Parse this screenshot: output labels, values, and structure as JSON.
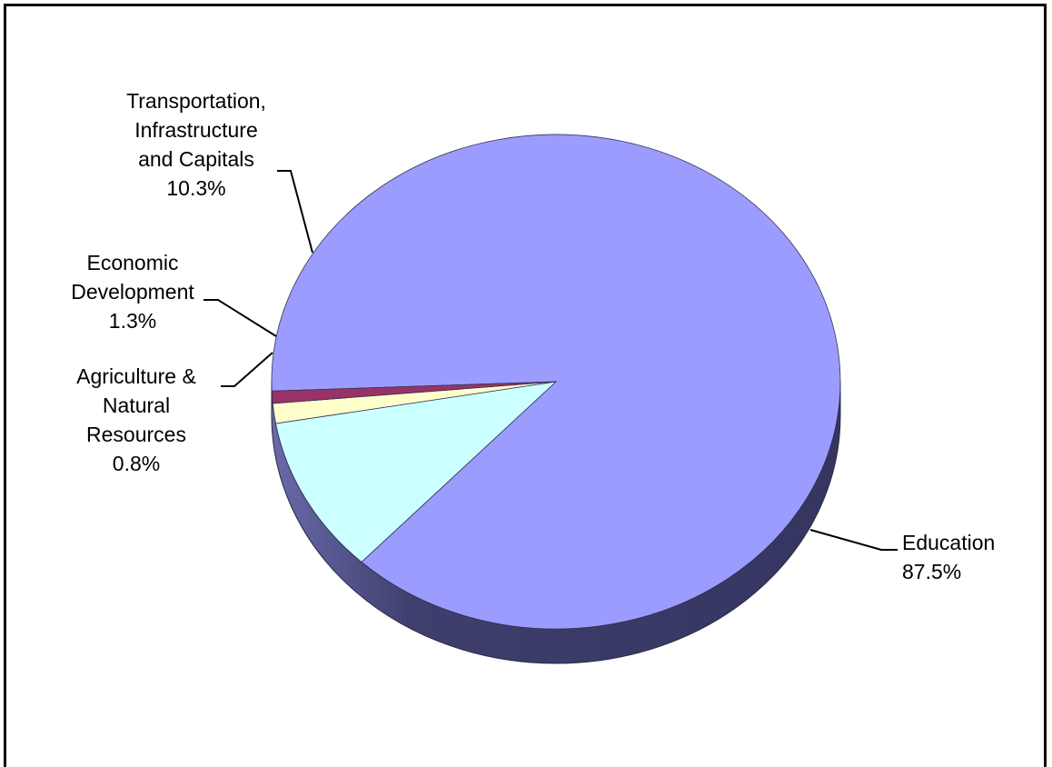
{
  "chart_data": {
    "type": "pie",
    "style": "3d",
    "legend": "none",
    "categories": [
      "Education",
      "Transportation, Infrastructure and Capitals",
      "Economic Development",
      "Agriculture & Natural Resources"
    ],
    "values": [
      87.5,
      10.3,
      1.3,
      0.8
    ],
    "colors": [
      "#9C9CFF",
      "#CCFFFF",
      "#FFFFCC",
      "#993366"
    ],
    "side_color": "#3A3A66",
    "labels": [
      {
        "lines": [
          "Education",
          "87.5%"
        ],
        "anchor": "start"
      },
      {
        "lines": [
          "Transportation,",
          "Infrastructure",
          "and Capitals",
          "10.3%"
        ],
        "anchor": "middle"
      },
      {
        "lines": [
          "Economic",
          "Development",
          "1.3%"
        ],
        "anchor": "middle"
      },
      {
        "lines": [
          "Agriculture  &",
          "Natural",
          "Resources",
          "0.8%"
        ],
        "anchor": "middle"
      }
    ]
  }
}
